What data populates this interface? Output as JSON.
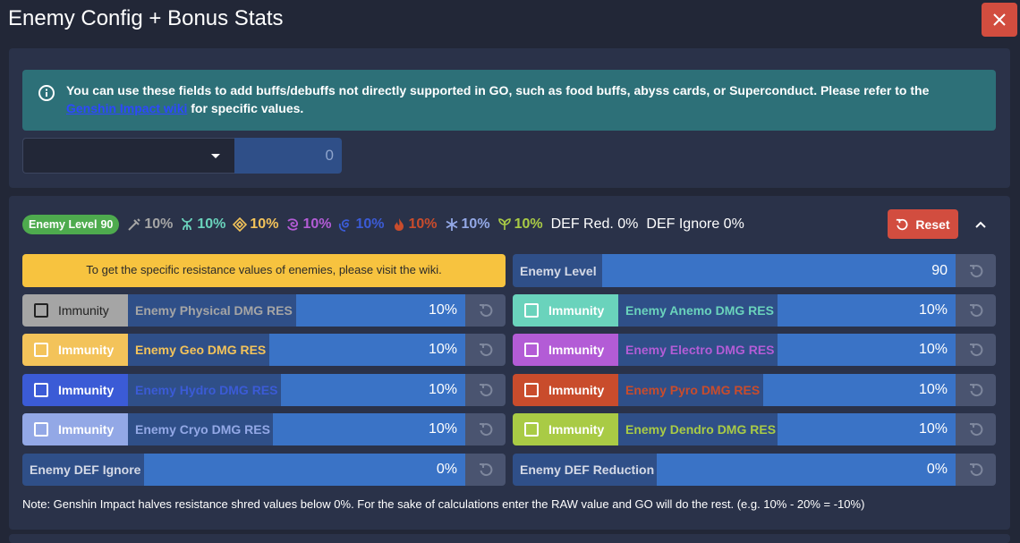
{
  "window": {
    "title": "Enemy Config + Bonus Stats"
  },
  "info": {
    "text_before": "You can use these fields to add buffs/debuffs not directly supported in GO, such as food buffs, abyss cards, or Superconduct. Please refer to the ",
    "link_text": "Genshin Impact wiki",
    "text_after": " for specific values."
  },
  "bonus": {
    "select_value": "",
    "value": "0"
  },
  "summary": {
    "badge_label": "Enemy Level",
    "badge_level": "90",
    "elements": [
      {
        "name": "physical",
        "value": "10%",
        "color": "#a5a5a5"
      },
      {
        "name": "anemo",
        "value": "10%",
        "color": "#6ad3bc"
      },
      {
        "name": "geo",
        "value": "10%",
        "color": "#f3c35a"
      },
      {
        "name": "electro",
        "value": "10%",
        "color": "#b35cd6"
      },
      {
        "name": "hydro",
        "value": "10%",
        "color": "#3b5bd6"
      },
      {
        "name": "pyro",
        "value": "10%",
        "color": "#c94c2c"
      },
      {
        "name": "cryo",
        "value": "10%",
        "color": "#93a8e6"
      },
      {
        "name": "dendro",
        "value": "10%",
        "color": "#a9cb45"
      }
    ],
    "def_red": "DEF Red. 0%",
    "def_ignore": "DEF Ignore 0%"
  },
  "buttons": {
    "reset": "Reset"
  },
  "warning": "To get the specific resistance values of enemies, please visit the wiki.",
  "enemy_level": {
    "label": "Enemy Level",
    "value": "90"
  },
  "immunity_label": "Immunity",
  "res": {
    "physical": {
      "label": "Enemy Physical DMG RES",
      "value": "10%"
    },
    "anemo": {
      "label": "Enemy Anemo DMG RES",
      "value": "10%"
    },
    "geo": {
      "label": "Enemy Geo DMG RES",
      "value": "10%"
    },
    "electro": {
      "label": "Enemy Electro DMG RES",
      "value": "10%"
    },
    "hydro": {
      "label": "Enemy Hydro DMG RES",
      "value": "10%"
    },
    "pyro": {
      "label": "Enemy Pyro DMG RES",
      "value": "10%"
    },
    "cryo": {
      "label": "Enemy Cryo DMG RES",
      "value": "10%"
    },
    "dendro": {
      "label": "Enemy Dendro DMG RES",
      "value": "10%"
    }
  },
  "def_ignore_field": {
    "label": "Enemy DEF Ignore",
    "value": "0%"
  },
  "def_reduction_field": {
    "label": "Enemy DEF Reduction",
    "value": "0%"
  },
  "note": "Note: Genshin Impact halves resistance shred values below 0%. For the sake of calculations enter the RAW value and GO will do the rest. (e.g. 10% - 20% = -10%)",
  "colors": {
    "background": "#222737",
    "card": "#2a3249",
    "danger": "#d24d3f",
    "info": "#2d7078",
    "warning": "#f7c33f",
    "field_label": "#2f4f88",
    "field_input": "#3a73c6",
    "reset_square": "#4a5470"
  }
}
